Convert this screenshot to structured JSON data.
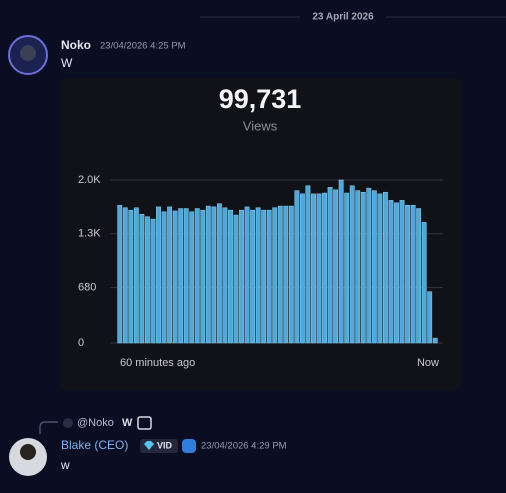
{
  "divider": {
    "date": "23 April 2026"
  },
  "message_1": {
    "author": "Noko",
    "timestamp": "23/04/2026 4:25 PM",
    "content": "W",
    "embed": {
      "headline": "99,731",
      "headline_caption": "Views",
      "chart": {
        "type": "bar",
        "color": "#4ca9d9",
        "grid": true,
        "ylim": [
          0,
          2000
        ],
        "yticks": [
          0,
          680,
          {
            "value": 1340,
            "label": "1.3K"
          },
          {
            "value": 2000,
            "label": "2.0K"
          }
        ],
        "x_start_label": "60 minutes ago",
        "x_end_label": "Now",
        "values": [
          1690,
          1660,
          1630,
          1660,
          1580,
          1550,
          1520,
          1670,
          1610,
          1670,
          1620,
          1650,
          1650,
          1610,
          1650,
          1630,
          1680,
          1670,
          1710,
          1660,
          1630,
          1570,
          1630,
          1670,
          1630,
          1660,
          1630,
          1630,
          1660,
          1680,
          1680,
          1680,
          1870,
          1830,
          1930,
          1830,
          1830,
          1840,
          1910,
          1880,
          2000,
          1840,
          1930,
          1870,
          1850,
          1900,
          1870,
          1830,
          1850,
          1750,
          1720,
          1750,
          1690,
          1690,
          1650,
          1480,
          630,
          60
        ]
      }
    }
  },
  "message_2": {
    "reply_to": "@Noko",
    "reply_content": "W",
    "author": "Blake (CEO)",
    "badge": "VID",
    "timestamp": "23/04/2026 4:29 PM",
    "content": "w"
  }
}
